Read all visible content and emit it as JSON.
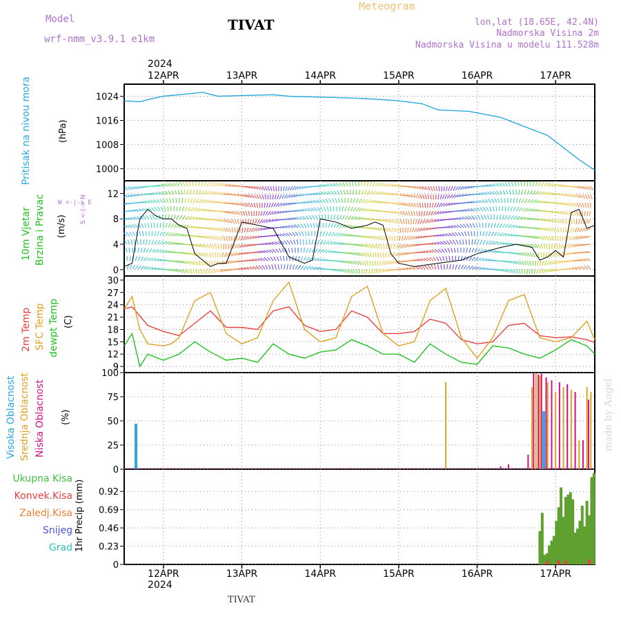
{
  "header": {
    "model_label": "Model",
    "model_name": "wrf-nmm_v3.9.1 e1km",
    "station": "TIVAT",
    "product": "Meteogram",
    "lonlat": "lon,lat (18.65E, 42.4N)",
    "height": "Nadmorska Visina 2m",
    "model_height": "Nadmorska Visina u modelu 111.528m"
  },
  "footer": {
    "station": "TIVAT",
    "credit": "made by Angel"
  },
  "colors": {
    "pressure": "#29a8e0",
    "temp2m": "#e84040",
    "sfc": "#e0a020",
    "dewpt": "#20c020",
    "high_cloud": "#29a8e0",
    "mid_cloud": "#e0a020",
    "low_cloud": "#d01080",
    "precip_total": "#40c040",
    "precip_conv": "#e84040",
    "precip_frozen": "#f08030",
    "snow": "#5050e0",
    "hail": "#30c0c0"
  },
  "time_axis": {
    "year": "2024",
    "labels": [
      "12APR",
      "13APR",
      "14APR",
      "15APR",
      "16APR",
      "17APR"
    ]
  },
  "panels": {
    "pressure": {
      "title": "Pritisak na nivou mora",
      "unit": "(hPa)"
    },
    "wind": {
      "title1": "10m Vjetar",
      "title2": "Brzina i Pravac",
      "unit": "(m/s)",
      "compass": "W <-|-> E",
      "compass_ns": "S <-|-> N"
    },
    "temp": {
      "t2m": "2m Temp",
      "sfc": "SFC Temp",
      "dew": "dewpt Temp",
      "unit": "(C)"
    },
    "cloud": {
      "high": "Visoka Oblacnost",
      "mid": "Srednja Oblacnost",
      "low": "Niska Oblacnost",
      "unit": "(%)"
    },
    "precip": {
      "total": "Ukupna Kisa",
      "conv": "Konvek.Kisa",
      "frozen": "Zaledj.Kisa",
      "snow": "Snijeg",
      "hail": "Grad",
      "unit": "1hr Precip (mm)"
    }
  },
  "chart_data": [
    {
      "type": "line",
      "panel": "pressure",
      "x_unit": "days since 11APR 00UTC",
      "ylabel": "(hPa)",
      "ylim": [
        996,
        1028
      ],
      "yticks": [
        1000,
        1008,
        1016,
        1024
      ],
      "series": [
        {
          "name": "Pritisak na nivou mora",
          "x": [
            0.5,
            0.7,
            0.9,
            1.0,
            1.2,
            1.5,
            1.7,
            2.0,
            2.4,
            2.6,
            2.9,
            3.3,
            3.6,
            4.0,
            4.3,
            4.5,
            4.9,
            5.3,
            5.6,
            5.9,
            6.1,
            6.3,
            6.5
          ],
          "values": [
            1022.5,
            1022.2,
            1023.5,
            1024.0,
            1024.5,
            1025.3,
            1024.0,
            1024.2,
            1024.5,
            1024.0,
            1023.8,
            1023.5,
            1023.2,
            1022.5,
            1021.5,
            1019.5,
            1019.0,
            1017.0,
            1014.0,
            1011.0,
            1007.0,
            1003.0,
            999.5
          ]
        }
      ]
    },
    {
      "type": "line",
      "panel": "wind",
      "x_unit": "days since 11APR 00UTC",
      "ylabel": "(m/s)",
      "ylim": [
        -1,
        14
      ],
      "yticks": [
        0,
        4,
        8,
        12
      ],
      "series": [
        {
          "name": "speed",
          "x": [
            0.5,
            0.6,
            0.7,
            0.8,
            0.9,
            1.0,
            1.1,
            1.2,
            1.3,
            1.4,
            1.5,
            1.6,
            1.7,
            1.8,
            2.0,
            2.2,
            2.4,
            2.6,
            2.7,
            2.8,
            2.9,
            3.0,
            3.2,
            3.4,
            3.6,
            3.7,
            3.8,
            3.9,
            4.0,
            4.2,
            4.5,
            4.8,
            5.0,
            5.3,
            5.5,
            5.7,
            5.8,
            5.9,
            6.0,
            6.1,
            6.2,
            6.3,
            6.4,
            6.5
          ],
          "values": [
            0.5,
            1.0,
            8.0,
            9.5,
            8.5,
            8.0,
            8.0,
            7.0,
            6.5,
            2.5,
            1.5,
            0.5,
            1.0,
            1.0,
            7.5,
            7.0,
            6.5,
            2.0,
            1.5,
            1.0,
            1.5,
            8.0,
            7.5,
            6.5,
            7.0,
            7.5,
            7.0,
            2.5,
            1.0,
            0.5,
            1.0,
            1.5,
            2.5,
            3.5,
            4.0,
            3.5,
            1.5,
            2.0,
            3.0,
            2.0,
            9.0,
            9.5,
            6.5,
            7.0
          ]
        }
      ]
    },
    {
      "type": "line",
      "panel": "temp",
      "x_unit": "days since 11APR 00UTC",
      "ylabel": "(C)",
      "ylim": [
        7.5,
        31
      ],
      "yticks": [
        9,
        12,
        15,
        18,
        21,
        24,
        27,
        30
      ],
      "series": [
        {
          "name": "2m Temp",
          "x": [
            0.5,
            0.6,
            0.8,
            1.0,
            1.2,
            1.4,
            1.6,
            1.8,
            2.0,
            2.2,
            2.4,
            2.6,
            2.8,
            3.0,
            3.2,
            3.4,
            3.6,
            3.8,
            4.0,
            4.2,
            4.4,
            4.6,
            4.8,
            5.0,
            5.2,
            5.4,
            5.6,
            5.8,
            6.0,
            6.2,
            6.4,
            6.5
          ],
          "values": [
            23,
            23.5,
            19,
            17.5,
            16.5,
            19.5,
            22.5,
            18.5,
            18.5,
            18,
            22.5,
            23.5,
            19,
            17.5,
            18,
            22.5,
            21,
            17,
            17,
            17.5,
            20.5,
            19.5,
            15.5,
            14.5,
            15,
            19,
            19.5,
            16.5,
            16,
            16.2,
            15.5,
            14.8
          ]
        },
        {
          "name": "SFC Temp",
          "x": [
            0.5,
            0.6,
            0.7,
            0.8,
            1.0,
            1.1,
            1.2,
            1.4,
            1.6,
            1.8,
            2.0,
            2.2,
            2.4,
            2.6,
            2.8,
            3.0,
            3.2,
            3.4,
            3.6,
            3.8,
            4.0,
            4.2,
            4.4,
            4.6,
            4.8,
            5.0,
            5.2,
            5.4,
            5.6,
            5.8,
            6.0,
            6.2,
            6.4,
            6.5
          ],
          "values": [
            23,
            26,
            18,
            14.5,
            14,
            14.5,
            16,
            25,
            27,
            17,
            14.5,
            16,
            25,
            29.5,
            18,
            15,
            16,
            26,
            28.5,
            17,
            14,
            15,
            25,
            28,
            16,
            11,
            16,
            25,
            26.5,
            16,
            15,
            16,
            20,
            15.5
          ]
        },
        {
          "name": "dewpt Temp",
          "x": [
            0.5,
            0.6,
            0.7,
            0.8,
            1.0,
            1.2,
            1.4,
            1.6,
            1.8,
            2.0,
            2.2,
            2.4,
            2.6,
            2.8,
            3.0,
            3.2,
            3.4,
            3.6,
            3.8,
            4.0,
            4.2,
            4.4,
            4.6,
            4.8,
            5.0,
            5.2,
            5.4,
            5.6,
            5.8,
            6.0,
            6.2,
            6.4,
            6.5
          ],
          "values": [
            14,
            17,
            9,
            12,
            10.5,
            12,
            15,
            12.5,
            10.5,
            11,
            10,
            14.5,
            12,
            11,
            12.5,
            13,
            15.5,
            14,
            12,
            12,
            10,
            14.5,
            12,
            10,
            9.5,
            14,
            13.5,
            12,
            11,
            13,
            15.5,
            14,
            12
          ]
        }
      ]
    },
    {
      "type": "bar",
      "panel": "cloud",
      "x_unit": "days since 11APR 00UTC",
      "ylabel": "(%)",
      "ylim": [
        0,
        100
      ],
      "yticks": [
        0,
        25,
        50,
        75,
        100
      ],
      "series": [
        {
          "name": "Visoka Oblacnost",
          "x": [
            0.65,
            5.85
          ],
          "values": [
            47,
            60
          ]
        },
        {
          "name": "Srednja Oblacnost",
          "x": [
            4.6,
            5.7,
            5.75,
            5.8,
            5.9,
            6.0,
            6.1,
            6.2,
            6.3,
            6.4,
            6.45
          ],
          "values": [
            90,
            85,
            99,
            97,
            90,
            80,
            85,
            82,
            30,
            85,
            80
          ]
        },
        {
          "name": "Niska Oblacnost",
          "x": [
            5.3,
            5.4,
            5.65,
            5.72,
            5.78,
            5.82,
            5.88,
            5.95,
            6.05,
            6.15,
            6.25,
            6.35,
            6.42
          ],
          "values": [
            3,
            5,
            15,
            100,
            98,
            99,
            95,
            92,
            90,
            88,
            80,
            30,
            72
          ]
        }
      ]
    },
    {
      "type": "bar",
      "panel": "precip",
      "x_unit": "days since 11APR 00UTC",
      "ylabel": "1hr Precip (mm)",
      "ylim": [
        0,
        1.2
      ],
      "yticks": [
        0,
        0.23,
        0.46,
        0.69,
        0.92
      ],
      "series": [
        {
          "name": "Ukupna Kisa",
          "x": [
            5.8,
            5.83,
            5.86,
            5.89,
            5.92,
            5.95,
            5.98,
            6.01,
            6.04,
            6.07,
            6.1,
            6.13,
            6.16,
            6.19,
            6.22,
            6.25,
            6.28,
            6.31,
            6.34,
            6.37,
            6.4,
            6.43,
            6.46,
            6.49
          ],
          "values": [
            0.42,
            0.65,
            0.12,
            0.14,
            0.24,
            0.3,
            0.36,
            0.55,
            0.72,
            0.97,
            0.6,
            0.85,
            0.88,
            0.91,
            0.82,
            0.4,
            0.45,
            0.55,
            0.74,
            0.48,
            0.8,
            0.62,
            1.1,
            1.15
          ]
        },
        {
          "name": "Konvek.Kisa",
          "x": [
            5.89,
            6.04,
            6.13,
            6.43
          ],
          "values": [
            0.04,
            0.05,
            0.04,
            0.06
          ]
        }
      ]
    }
  ]
}
